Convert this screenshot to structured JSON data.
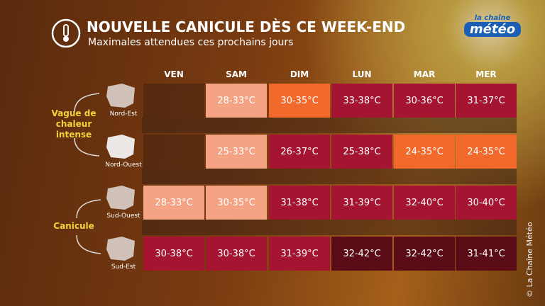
{
  "header": {
    "title": "NOUVELLE CANICULE DÈS CE WEEK-END",
    "subtitle": "Maximales attendues ces prochains jours"
  },
  "logo": {
    "top": "la chaîne",
    "bottom": "météo"
  },
  "copyright": "© La Chaîne Météo",
  "groups": [
    {
      "label": "Vague de chaleur intense"
    },
    {
      "label": "Canicule"
    }
  ],
  "table": {
    "columns": [
      "VEN",
      "SAM",
      "DIM",
      "LUN",
      "MAR",
      "MER"
    ],
    "rows": [
      {
        "region": "Nord-Est",
        "cells": [
          null,
          {
            "text": "28-33°C",
            "color": "#f4a384"
          },
          {
            "text": "30-35°C",
            "color": "#f26a2b"
          },
          {
            "text": "33-38°C",
            "color": "#a51532"
          },
          {
            "text": "30-36°C",
            "color": "#a51532"
          },
          {
            "text": "31-37°C",
            "color": "#a51532"
          }
        ]
      },
      {
        "region": "Nord-Ouest",
        "cells": [
          null,
          {
            "text": "25-33°C",
            "color": "#f4a384"
          },
          {
            "text": "26-37°C",
            "color": "#a51532"
          },
          {
            "text": "25-38°C",
            "color": "#a51532"
          },
          {
            "text": "24-35°C",
            "color": "#f26a2b"
          },
          {
            "text": "24-35°C",
            "color": "#f26a2b"
          }
        ]
      },
      {
        "region": "Sud-Ouest",
        "cells": [
          {
            "text": "28-33°C",
            "color": "#f4a384"
          },
          {
            "text": "30-35°C",
            "color": "#f4a384"
          },
          {
            "text": "31-38°C",
            "color": "#a51532"
          },
          {
            "text": "31-39°C",
            "color": "#a51532"
          },
          {
            "text": "32-40°C",
            "color": "#a51532"
          },
          {
            "text": "30-40°C",
            "color": "#a51532"
          }
        ]
      },
      {
        "region": "Sud-Est",
        "cells": [
          {
            "text": "30-38°C",
            "color": "#a51532"
          },
          {
            "text": "30-38°C",
            "color": "#a51532"
          },
          {
            "text": "31-39°C",
            "color": "#a51532"
          },
          {
            "text": "32-42°C",
            "color": "#5a0b16"
          },
          {
            "text": "32-42°C",
            "color": "#5a0b16"
          },
          {
            "text": "31-41°C",
            "color": "#5a0b16"
          }
        ]
      }
    ]
  }
}
